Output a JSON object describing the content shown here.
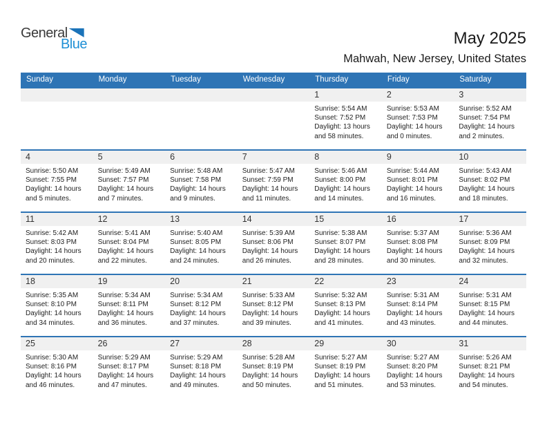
{
  "logo": {
    "general": "General",
    "blue": "Blue"
  },
  "header": {
    "title": "May 2025",
    "subtitle": "Mahwah, New Jersey, United States"
  },
  "colors": {
    "accent_blue": "#2e74b5",
    "day_band_gray": "#f0f0f0",
    "logo_text_blue": "#1e8fd5",
    "logo_triangle_blue": "#1b73b9"
  },
  "weekdays": [
    "Sunday",
    "Monday",
    "Tuesday",
    "Wednesday",
    "Thursday",
    "Friday",
    "Saturday"
  ],
  "weeks": [
    [
      {
        "day": "",
        "lines": []
      },
      {
        "day": "",
        "lines": []
      },
      {
        "day": "",
        "lines": []
      },
      {
        "day": "",
        "lines": []
      },
      {
        "day": "1",
        "lines": [
          "Sunrise: 5:54 AM",
          "Sunset: 7:52 PM",
          "Daylight: 13 hours",
          "and 58 minutes."
        ]
      },
      {
        "day": "2",
        "lines": [
          "Sunrise: 5:53 AM",
          "Sunset: 7:53 PM",
          "Daylight: 14 hours",
          "and 0 minutes."
        ]
      },
      {
        "day": "3",
        "lines": [
          "Sunrise: 5:52 AM",
          "Sunset: 7:54 PM",
          "Daylight: 14 hours",
          "and 2 minutes."
        ]
      }
    ],
    [
      {
        "day": "4",
        "lines": [
          "Sunrise: 5:50 AM",
          "Sunset: 7:55 PM",
          "Daylight: 14 hours",
          "and 5 minutes."
        ]
      },
      {
        "day": "5",
        "lines": [
          "Sunrise: 5:49 AM",
          "Sunset: 7:57 PM",
          "Daylight: 14 hours",
          "and 7 minutes."
        ]
      },
      {
        "day": "6",
        "lines": [
          "Sunrise: 5:48 AM",
          "Sunset: 7:58 PM",
          "Daylight: 14 hours",
          "and 9 minutes."
        ]
      },
      {
        "day": "7",
        "lines": [
          "Sunrise: 5:47 AM",
          "Sunset: 7:59 PM",
          "Daylight: 14 hours",
          "and 11 minutes."
        ]
      },
      {
        "day": "8",
        "lines": [
          "Sunrise: 5:46 AM",
          "Sunset: 8:00 PM",
          "Daylight: 14 hours",
          "and 14 minutes."
        ]
      },
      {
        "day": "9",
        "lines": [
          "Sunrise: 5:44 AM",
          "Sunset: 8:01 PM",
          "Daylight: 14 hours",
          "and 16 minutes."
        ]
      },
      {
        "day": "10",
        "lines": [
          "Sunrise: 5:43 AM",
          "Sunset: 8:02 PM",
          "Daylight: 14 hours",
          "and 18 minutes."
        ]
      }
    ],
    [
      {
        "day": "11",
        "lines": [
          "Sunrise: 5:42 AM",
          "Sunset: 8:03 PM",
          "Daylight: 14 hours",
          "and 20 minutes."
        ]
      },
      {
        "day": "12",
        "lines": [
          "Sunrise: 5:41 AM",
          "Sunset: 8:04 PM",
          "Daylight: 14 hours",
          "and 22 minutes."
        ]
      },
      {
        "day": "13",
        "lines": [
          "Sunrise: 5:40 AM",
          "Sunset: 8:05 PM",
          "Daylight: 14 hours",
          "and 24 minutes."
        ]
      },
      {
        "day": "14",
        "lines": [
          "Sunrise: 5:39 AM",
          "Sunset: 8:06 PM",
          "Daylight: 14 hours",
          "and 26 minutes."
        ]
      },
      {
        "day": "15",
        "lines": [
          "Sunrise: 5:38 AM",
          "Sunset: 8:07 PM",
          "Daylight: 14 hours",
          "and 28 minutes."
        ]
      },
      {
        "day": "16",
        "lines": [
          "Sunrise: 5:37 AM",
          "Sunset: 8:08 PM",
          "Daylight: 14 hours",
          "and 30 minutes."
        ]
      },
      {
        "day": "17",
        "lines": [
          "Sunrise: 5:36 AM",
          "Sunset: 8:09 PM",
          "Daylight: 14 hours",
          "and 32 minutes."
        ]
      }
    ],
    [
      {
        "day": "18",
        "lines": [
          "Sunrise: 5:35 AM",
          "Sunset: 8:10 PM",
          "Daylight: 14 hours",
          "and 34 minutes."
        ]
      },
      {
        "day": "19",
        "lines": [
          "Sunrise: 5:34 AM",
          "Sunset: 8:11 PM",
          "Daylight: 14 hours",
          "and 36 minutes."
        ]
      },
      {
        "day": "20",
        "lines": [
          "Sunrise: 5:34 AM",
          "Sunset: 8:12 PM",
          "Daylight: 14 hours",
          "and 37 minutes."
        ]
      },
      {
        "day": "21",
        "lines": [
          "Sunrise: 5:33 AM",
          "Sunset: 8:12 PM",
          "Daylight: 14 hours",
          "and 39 minutes."
        ]
      },
      {
        "day": "22",
        "lines": [
          "Sunrise: 5:32 AM",
          "Sunset: 8:13 PM",
          "Daylight: 14 hours",
          "and 41 minutes."
        ]
      },
      {
        "day": "23",
        "lines": [
          "Sunrise: 5:31 AM",
          "Sunset: 8:14 PM",
          "Daylight: 14 hours",
          "and 43 minutes."
        ]
      },
      {
        "day": "24",
        "lines": [
          "Sunrise: 5:31 AM",
          "Sunset: 8:15 PM",
          "Daylight: 14 hours",
          "and 44 minutes."
        ]
      }
    ],
    [
      {
        "day": "25",
        "lines": [
          "Sunrise: 5:30 AM",
          "Sunset: 8:16 PM",
          "Daylight: 14 hours",
          "and 46 minutes."
        ]
      },
      {
        "day": "26",
        "lines": [
          "Sunrise: 5:29 AM",
          "Sunset: 8:17 PM",
          "Daylight: 14 hours",
          "and 47 minutes."
        ]
      },
      {
        "day": "27",
        "lines": [
          "Sunrise: 5:29 AM",
          "Sunset: 8:18 PM",
          "Daylight: 14 hours",
          "and 49 minutes."
        ]
      },
      {
        "day": "28",
        "lines": [
          "Sunrise: 5:28 AM",
          "Sunset: 8:19 PM",
          "Daylight: 14 hours",
          "and 50 minutes."
        ]
      },
      {
        "day": "29",
        "lines": [
          "Sunrise: 5:27 AM",
          "Sunset: 8:19 PM",
          "Daylight: 14 hours",
          "and 51 minutes."
        ]
      },
      {
        "day": "30",
        "lines": [
          "Sunrise: 5:27 AM",
          "Sunset: 8:20 PM",
          "Daylight: 14 hours",
          "and 53 minutes."
        ]
      },
      {
        "day": "31",
        "lines": [
          "Sunrise: 5:26 AM",
          "Sunset: 8:21 PM",
          "Daylight: 14 hours",
          "and 54 minutes."
        ]
      }
    ]
  ]
}
